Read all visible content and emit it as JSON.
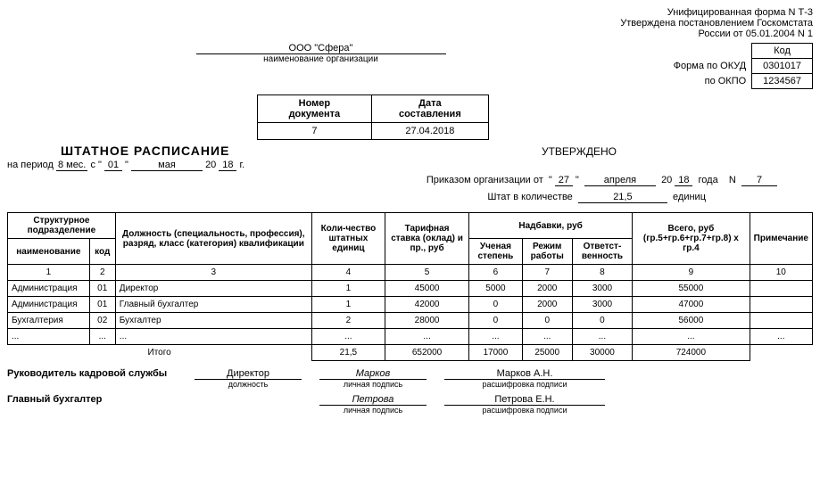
{
  "header": {
    "line1": "Унифицированная форма N Т-3",
    "line2": "Утверждена постановлением Госкомстата",
    "line3": "России от 05.01.2004 N 1"
  },
  "codes": {
    "kod_label": "Код",
    "okud_label": "Форма по ОКУД",
    "okud_value": "0301017",
    "okpo_label": "по ОКПО",
    "okpo_value": "1234567"
  },
  "org": {
    "name": "ООО \"Сфера\"",
    "caption": "наименование организации"
  },
  "doc_meta": {
    "num_label": "Номер документа",
    "date_label": "Дата составления",
    "num_value": "7",
    "date_value": "27.04.2018"
  },
  "title": "ШТАТНОЕ РАСПИСАНИЕ",
  "approved": "УТВЕРЖДЕНО",
  "period": {
    "prefix": "на период",
    "months": "8 мес.",
    "s": "с \"",
    "day": "01",
    "quote2": "\"",
    "month": "мая",
    "year_prefix": "20",
    "year": "18",
    "suffix": "г."
  },
  "order": {
    "prefix": "Приказом организации от",
    "q1": "\"",
    "day": "27",
    "q2": "\"",
    "month": "апреля",
    "yp": "20",
    "year": "18",
    "goda": "года",
    "n": "N",
    "num": "7"
  },
  "staff": {
    "prefix": "Штат в количестве",
    "value": "21,5",
    "units": "единиц"
  },
  "table": {
    "headers": {
      "struct": "Структурное подразделение",
      "name": "наименование",
      "code": "код",
      "position": "Должность (специальность, профессия), разряд, класс (категория) квалификации",
      "qty": "Коли-чество штатных единиц",
      "rate": "Тарифная ставка (оклад) и пр., руб",
      "allowances": "Надбавки, руб",
      "degree": "Ученая степень",
      "mode": "Режим работы",
      "resp": "Ответст-венность",
      "total": "Всего, руб (гр.5+гр.6+гр.7+гр.8) х гр.4",
      "note": "Примечание"
    },
    "nums": [
      "1",
      "2",
      "3",
      "4",
      "5",
      "6",
      "7",
      "8",
      "9",
      "10"
    ],
    "rows": [
      {
        "name": "Администрация",
        "code": "01",
        "pos": "Директор",
        "qty": "1",
        "rate": "45000",
        "a1": "5000",
        "a2": "2000",
        "a3": "3000",
        "total": "55000",
        "note": ""
      },
      {
        "name": "Администрация",
        "code": "01",
        "pos": "Главный бухгалтер",
        "qty": "1",
        "rate": "42000",
        "a1": "0",
        "a2": "2000",
        "a3": "3000",
        "total": "47000",
        "note": ""
      },
      {
        "name": "Бухгалтерия",
        "code": "02",
        "pos": "Бухгалтер",
        "qty": "2",
        "rate": "28000",
        "a1": "0",
        "a2": "0",
        "a3": "0",
        "total": "56000",
        "note": ""
      },
      {
        "name": "...",
        "code": "...",
        "pos": "...",
        "qty": "...",
        "rate": "...",
        "a1": "...",
        "a2": "...",
        "a3": "...",
        "total": "...",
        "note": "..."
      }
    ],
    "totals": {
      "label": "Итого",
      "qty": "21,5",
      "rate": "652000",
      "a1": "17000",
      "a2": "25000",
      "a3": "30000",
      "total": "724000"
    }
  },
  "signatures": {
    "hr_label": "Руководитель кадровой службы",
    "hr_position": "Директор",
    "hr_sign": "Марков",
    "hr_decoded": "Марков А.Н.",
    "pos_caption": "должность",
    "sign_caption": "личная подпись",
    "decoded_caption": "расшифровка подписи",
    "acc_label": "Главный бухгалтер",
    "acc_sign": "Петрова",
    "acc_decoded": "Петрова Е.Н."
  }
}
